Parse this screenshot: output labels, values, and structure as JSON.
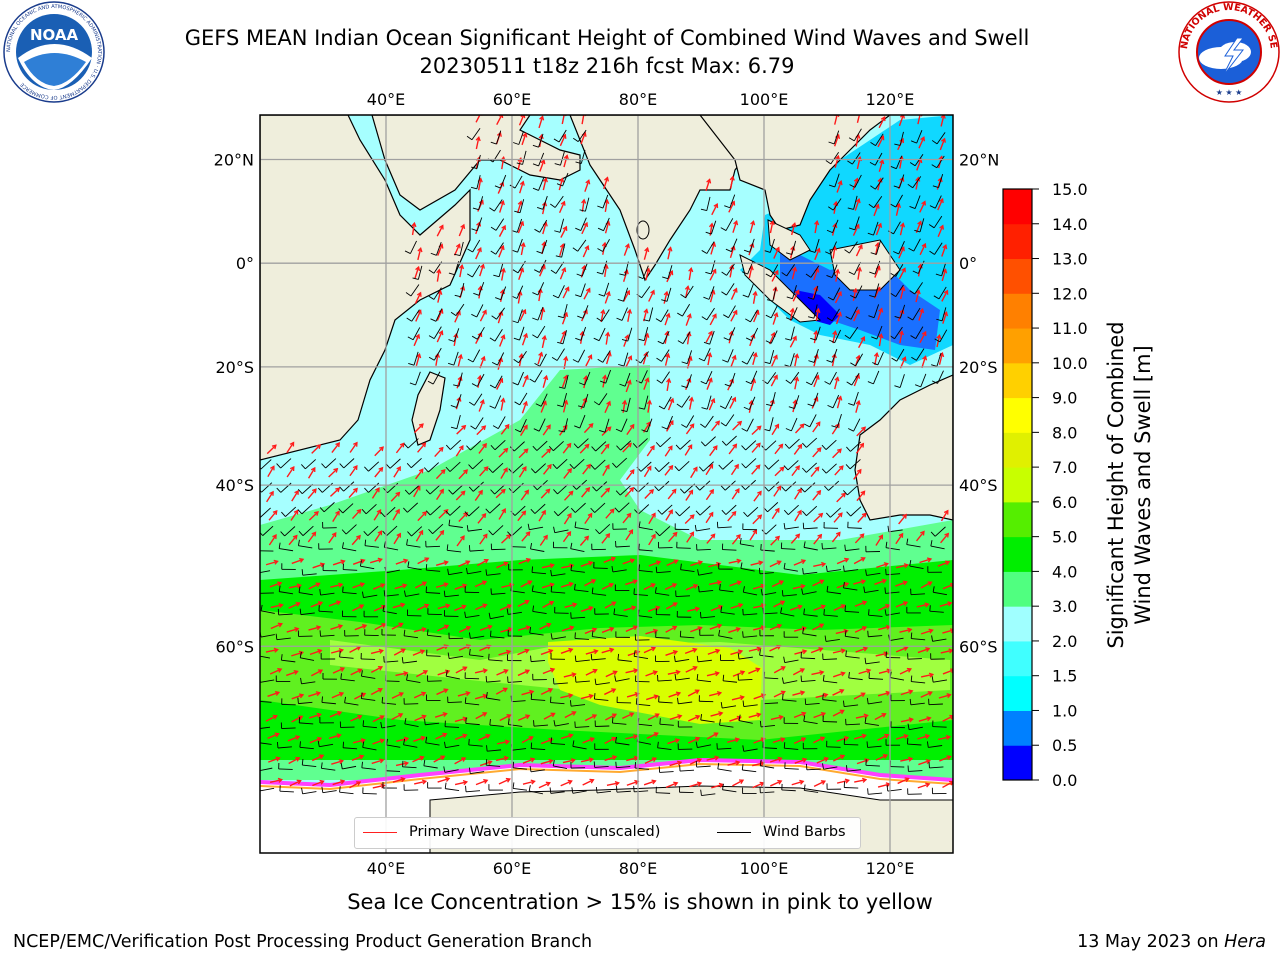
{
  "title": {
    "line1": "GEFS MEAN Indian Ocean Significant Height of Combined Wind Waves and Swell",
    "line2": "20230511 t18z 216h fcst   Max: 6.79"
  },
  "map": {
    "lon_range": [
      20,
      130
    ],
    "lat_range": [
      -75,
      28
    ],
    "lon_ticks": [
      {
        "value": 40,
        "label": "40°E"
      },
      {
        "value": 60,
        "label": "60°E"
      },
      {
        "value": 80,
        "label": "80°E"
      },
      {
        "value": 100,
        "label": "100°E"
      },
      {
        "value": 120,
        "label": "120°E"
      }
    ],
    "lat_ticks": [
      {
        "value": 20,
        "label": "20°N"
      },
      {
        "value": 0,
        "label": "0°"
      },
      {
        "value": -20,
        "label": "20°S"
      },
      {
        "value": -40,
        "label": "40°S"
      },
      {
        "value": -60,
        "label": "60°S"
      }
    ],
    "grid": true,
    "colors": {
      "land": "#efeedc",
      "ice": "#ffffff",
      "wave_arrow": "#ff0000",
      "wind_barb": "#000000"
    }
  },
  "legend": {
    "wave_label": "Primary Wave Direction (unscaled)",
    "barb_label": "Wind Barbs"
  },
  "colorbar": {
    "label_line1": "Significant Height of Combined",
    "label_line2": "Wind Waves and Swell [m]",
    "ticks": [
      "0.0",
      "0.5",
      "1.0",
      "1.5",
      "2.0",
      "3.0",
      "4.0",
      "5.0",
      "6.0",
      "7.0",
      "8.0",
      "9.0",
      "10.0",
      "11.0",
      "12.0",
      "13.0",
      "14.0",
      "15.0"
    ],
    "colors": [
      "#0000ff",
      "#0080ff",
      "#00ffff",
      "#40ffff",
      "#a0ffff",
      "#50ff80",
      "#00ee00",
      "#55ee00",
      "#c8ff00",
      "#e0f000",
      "#ffff00",
      "#ffd000",
      "#ffa000",
      "#ff8000",
      "#ff5000",
      "#ff2000",
      "#ff0000"
    ]
  },
  "subcaption": "Sea Ice Concentration > 15% is shown in pink to yellow",
  "footer": {
    "left": "NCEP/EMC/Verification Post Processing Product Generation Branch",
    "right_prefix": "13 May 2023 on ",
    "right_host": "Hera"
  },
  "logos": {
    "noaa_text": "NOAA",
    "noaa_ring": "NATIONAL OCEANIC AND ATMOSPHERIC ADMINISTRATION · U.S. DEPARTMENT OF COMMERCE",
    "nws_ring": "NATIONAL WEATHER SERVICE"
  }
}
